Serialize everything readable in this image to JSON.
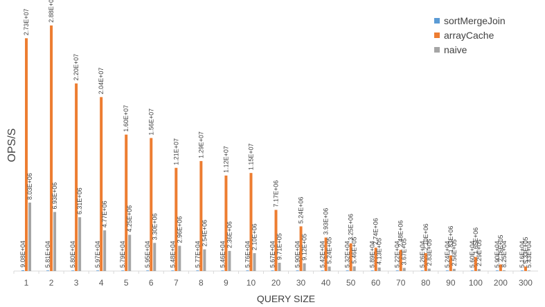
{
  "chart_data": {
    "type": "bar",
    "title": "",
    "xlabel": "QUERY SIZE",
    "ylabel": "OPS/S",
    "ylim": [
      0,
      30000000
    ],
    "grid": false,
    "legend_position": "top-right",
    "categories": [
      "1",
      "2",
      "3",
      "4",
      "5",
      "6",
      "7",
      "8",
      "9",
      "10",
      "20",
      "30",
      "40",
      "50",
      "60",
      "70",
      "80",
      "90",
      "100",
      "200",
      "300"
    ],
    "series": [
      {
        "name": "sortMergeJoin",
        "color": "#5B9BD5",
        "values": [
          90800,
          58100,
          58000,
          59700,
          57900,
          59500,
          54800,
          57700,
          54600,
          57600,
          56700,
          59000,
          54200,
          53200,
          58900,
          52200,
          52600,
          52400,
          56000,
          59000,
          51600
        ],
        "labels": [
          "9.08E+04",
          "5.81E+04",
          "5.80E+04",
          "5.97E+04",
          "5.79E+04",
          "5.95E+04",
          "5.48E+04",
          "5.77E+04",
          "5.46E+04",
          "5.76E+04",
          "5.67E+04",
          "5.90E+04",
          "5.42E+04",
          "5.32E+04",
          "5.89E+04",
          "5.22E+04",
          "5.26E+04",
          "5.24E+04",
          "5.60E+04",
          "5.90E+04",
          "5.16E+04"
        ]
      },
      {
        "name": "arrayCache",
        "color": "#ED7D31",
        "values": [
          27300000,
          28800000,
          22000000,
          20400000,
          16000000,
          15600000,
          12100000,
          12900000,
          11200000,
          11500000,
          7170000,
          5240000,
          3930000,
          3250000,
          2740000,
          2480000,
          2100000,
          1830000,
          1650000,
          776000,
          533000
        ],
        "labels": [
          "2.73E+07",
          "2.88E+07",
          "2.20E+07",
          "2.04E+07",
          "1.60E+07",
          "1.56E+07",
          "1.21E+07",
          "1.29E+07",
          "1.12E+07",
          "1.15E+07",
          "7.17E+06",
          "5.24E+06",
          "3.93E+06",
          "3.25E+06",
          "2.74E+06",
          "2.48E+06",
          "2.10E+06",
          "1.83E+06",
          "1.65E+06",
          "7.76E+05",
          "5.33E+05"
        ]
      },
      {
        "name": "naive",
        "color": "#A5A5A5",
        "values": [
          8030000,
          6930000,
          6310000,
          4770000,
          4250000,
          3300000,
          2960000,
          2540000,
          2360000,
          2100000,
          971000,
          912000,
          524000,
          546000,
          413000,
          367000,
          283000,
          256000,
          229000,
          82500,
          54300
        ],
        "labels": [
          "8.03E+06",
          "6.93E+06",
          "6.31E+06",
          "4.77E+06",
          "4.25E+06",
          "3.30E+06",
          "2.96E+06",
          "2.54E+06",
          "2.36E+06",
          "2.10E+06",
          "9.71E+05",
          "9.12E+05",
          "5.24E+05",
          "5.46E+05",
          "4.13E+05",
          "3.67E+05",
          "2.83E+05",
          "2.56E+05",
          "2.29E+05",
          "8.25E+04",
          "5.43E+04"
        ]
      }
    ]
  }
}
